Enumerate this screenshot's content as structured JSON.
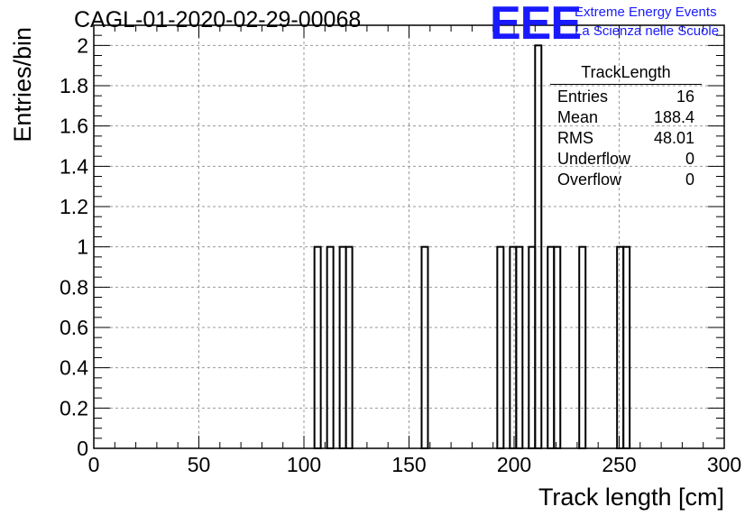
{
  "header": {
    "run_title": "CAGL-01-2020-02-29-00068",
    "logo_mark": "EEE",
    "logo_line1": "Extreme Energy Events",
    "logo_line2": "La Scienza nelle Scuole",
    "brand_color": "#1a1aff"
  },
  "stats_box": {
    "name": "TrackLength",
    "rows": [
      {
        "label": "Entries",
        "value": "16"
      },
      {
        "label": "Mean",
        "value": "188.4"
      },
      {
        "label": "RMS",
        "value": "48.01"
      },
      {
        "label": "Underflow",
        "value": "0"
      },
      {
        "label": "Overflow",
        "value": "0"
      }
    ]
  },
  "chart_data": {
    "type": "bar",
    "style": "step-histogram",
    "xlabel": "Track length [cm]",
    "ylabel": "Entries/bin",
    "xlim": [
      0,
      300
    ],
    "ylim": [
      0,
      2.1
    ],
    "bin_width": 3,
    "grid": true,
    "x_ticks": [
      "0",
      "50",
      "100",
      "150",
      "200",
      "250",
      "300"
    ],
    "y_ticks": [
      "0",
      "0.2",
      "0.4",
      "0.6",
      "0.8",
      "1",
      "1.2",
      "1.4",
      "1.6",
      "1.8",
      "2"
    ],
    "bins": [
      {
        "x": 105,
        "value": 1
      },
      {
        "x": 111,
        "value": 1
      },
      {
        "x": 117,
        "value": 1
      },
      {
        "x": 120,
        "value": 1
      },
      {
        "x": 156,
        "value": 1
      },
      {
        "x": 192,
        "value": 1
      },
      {
        "x": 198,
        "value": 1
      },
      {
        "x": 201,
        "value": 1
      },
      {
        "x": 207,
        "value": 1
      },
      {
        "x": 210,
        "value": 2
      },
      {
        "x": 216,
        "value": 1
      },
      {
        "x": 219,
        "value": 1
      },
      {
        "x": 231,
        "value": 1
      },
      {
        "x": 249,
        "value": 1
      },
      {
        "x": 252,
        "value": 1
      }
    ]
  }
}
